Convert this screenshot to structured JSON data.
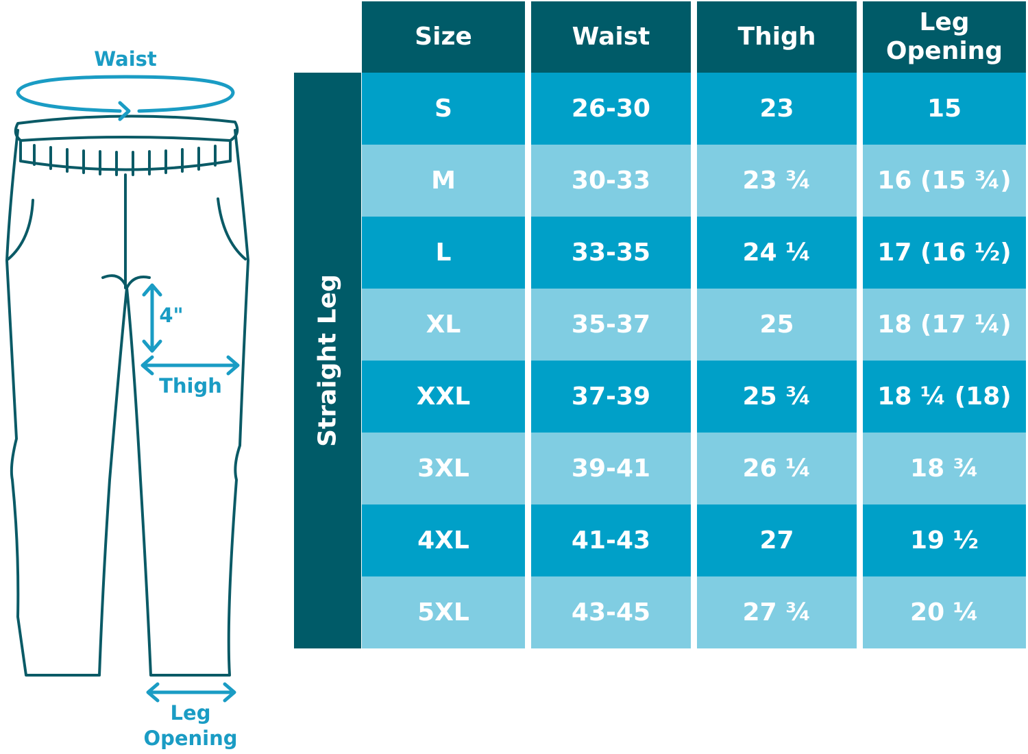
{
  "diagram": {
    "labels": {
      "waist": "Waist",
      "rise": "4\"",
      "thigh": "Thigh",
      "leg_opening": "Leg Opening"
    }
  },
  "table": {
    "side_label": "Straight Leg",
    "header": [
      "Size",
      "Waist",
      "Thigh",
      "Leg Opening"
    ],
    "rows": [
      [
        "S",
        "26-30",
        "23",
        "15"
      ],
      [
        "M",
        "30-33",
        "23 ¾",
        "16 (15 ¾)"
      ],
      [
        "L",
        "33-35",
        "24 ¼",
        "17 (16 ½)"
      ],
      [
        "XL",
        "35-37",
        "25",
        "18 (17 ¼)"
      ],
      [
        "XXL",
        "37-39",
        "25 ¾",
        "18 ¼ (18)"
      ],
      [
        "3XL",
        "39-41",
        "26 ¼",
        "18 ¾"
      ],
      [
        "4XL",
        "41-43",
        "27",
        "19 ½"
      ],
      [
        "5XL",
        "43-45",
        "27 ¾",
        "20 ¼"
      ]
    ]
  }
}
